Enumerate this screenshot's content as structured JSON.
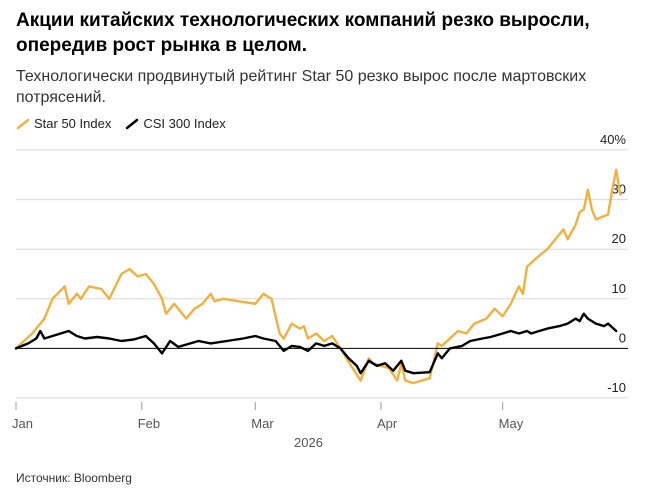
{
  "title": "Акции китайских технологических компаний резко выросли, опередив рост рынка в целом.",
  "subtitle": "Технологически продвинутый рейтинг Star 50 резко вырос после мартовских потрясений.",
  "source": "Источник: Bloomberg",
  "colors": {
    "star50": "#F0B13F",
    "csi300": "#000000",
    "grid": "#d9d9d9",
    "zero": "#000000",
    "axis_text": "#555555"
  },
  "chart_data": {
    "type": "line",
    "xlabel": "2026",
    "x_ticks": [
      "Jan",
      "Feb",
      "Mar",
      "Apr",
      "May"
    ],
    "y_ticks": [
      "40%",
      "30",
      "20",
      "10",
      "0",
      "-10"
    ],
    "y_tick_values": [
      40,
      30,
      20,
      10,
      0,
      -10
    ],
    "ylim": [
      -10,
      40
    ],
    "xlim": [
      "2026-01-01",
      "2026-05-25"
    ],
    "grid": true,
    "legend_position": "top-left",
    "series": [
      {
        "name": "Star 50 Index",
        "color": "#F0B13F",
        "points": [
          [
            "2026-01-01",
            0
          ],
          [
            "2026-01-05",
            3
          ],
          [
            "2026-01-08",
            6
          ],
          [
            "2026-01-10",
            10
          ],
          [
            "2026-01-13",
            12.5
          ],
          [
            "2026-01-14",
            9
          ],
          [
            "2026-01-16",
            11
          ],
          [
            "2026-01-17",
            10
          ],
          [
            "2026-01-19",
            12.5
          ],
          [
            "2026-01-22",
            12
          ],
          [
            "2026-01-24",
            10
          ],
          [
            "2026-01-27",
            15
          ],
          [
            "2026-01-29",
            16
          ],
          [
            "2026-01-31",
            14.5
          ],
          [
            "2026-02-02",
            15
          ],
          [
            "2026-02-04",
            13
          ],
          [
            "2026-02-06",
            10
          ],
          [
            "2026-02-07",
            7
          ],
          [
            "2026-02-09",
            9
          ],
          [
            "2026-02-12",
            6
          ],
          [
            "2026-02-14",
            8
          ],
          [
            "2026-02-16",
            9
          ],
          [
            "2026-02-18",
            11
          ],
          [
            "2026-02-19",
            9.5
          ],
          [
            "2026-02-21",
            10
          ],
          [
            "2026-03-01",
            9
          ],
          [
            "2026-03-03",
            11
          ],
          [
            "2026-03-05",
            10
          ],
          [
            "2026-03-07",
            3
          ],
          [
            "2026-03-08",
            2
          ],
          [
            "2026-03-10",
            5
          ],
          [
            "2026-03-12",
            4
          ],
          [
            "2026-03-13",
            4.5
          ],
          [
            "2026-03-14",
            2
          ],
          [
            "2026-03-16",
            3
          ],
          [
            "2026-03-18",
            1.5
          ],
          [
            "2026-03-20",
            2.5
          ],
          [
            "2026-03-22",
            0
          ],
          [
            "2026-03-25",
            -4
          ],
          [
            "2026-03-27",
            -6.5
          ],
          [
            "2026-03-29",
            -2
          ],
          [
            "2026-03-30",
            -3
          ],
          [
            "2026-04-01",
            -3.5
          ],
          [
            "2026-04-03",
            -4
          ],
          [
            "2026-04-05",
            -6.5
          ],
          [
            "2026-04-06",
            -3
          ],
          [
            "2026-04-07",
            -6.5
          ],
          [
            "2026-04-09",
            -7
          ],
          [
            "2026-04-13",
            -6
          ],
          [
            "2026-04-15",
            1
          ],
          [
            "2026-04-16",
            0.5
          ],
          [
            "2026-04-18",
            2
          ],
          [
            "2026-04-20",
            3.5
          ],
          [
            "2026-04-22",
            3
          ],
          [
            "2026-04-24",
            5
          ],
          [
            "2026-04-27",
            6
          ],
          [
            "2026-04-29",
            8
          ],
          [
            "2026-05-01",
            6.5
          ],
          [
            "2026-05-03",
            9
          ],
          [
            "2026-05-05",
            12.5
          ],
          [
            "2026-05-06",
            11
          ],
          [
            "2026-05-07",
            16.5
          ],
          [
            "2026-05-09",
            18
          ],
          [
            "2026-05-12",
            20
          ],
          [
            "2026-05-14",
            22
          ],
          [
            "2026-05-16",
            24
          ],
          [
            "2026-05-17",
            22
          ],
          [
            "2026-05-19",
            25
          ],
          [
            "2026-05-20",
            27.5
          ],
          [
            "2026-05-21",
            28
          ],
          [
            "2026-05-22",
            32
          ],
          [
            "2026-05-23",
            28
          ],
          [
            "2026-05-24",
            26
          ],
          [
            "2026-05-27",
            27
          ],
          [
            "2026-05-28",
            32
          ],
          [
            "2026-05-29",
            36
          ],
          [
            "2026-05-30",
            31
          ]
        ]
      },
      {
        "name": "CSI 300 Index",
        "color": "#000000",
        "points": [
          [
            "2026-01-01",
            0
          ],
          [
            "2026-01-04",
            1
          ],
          [
            "2026-01-06",
            2
          ],
          [
            "2026-01-07",
            3.5
          ],
          [
            "2026-01-08",
            2
          ],
          [
            "2026-01-10",
            2.5
          ],
          [
            "2026-01-12",
            3
          ],
          [
            "2026-01-14",
            3.5
          ],
          [
            "2026-01-16",
            2.5
          ],
          [
            "2026-01-18",
            2
          ],
          [
            "2026-01-21",
            2.3
          ],
          [
            "2026-01-24",
            2
          ],
          [
            "2026-01-27",
            1.5
          ],
          [
            "2026-01-30",
            1.8
          ],
          [
            "2026-02-02",
            2.5
          ],
          [
            "2026-02-04",
            1
          ],
          [
            "2026-02-06",
            -1
          ],
          [
            "2026-02-08",
            1.5
          ],
          [
            "2026-02-10",
            0.3
          ],
          [
            "2026-02-13",
            1
          ],
          [
            "2026-02-15",
            1.5
          ],
          [
            "2026-02-18",
            1
          ],
          [
            "2026-02-22",
            1.5
          ],
          [
            "2026-02-26",
            2
          ],
          [
            "2026-03-01",
            2.5
          ],
          [
            "2026-03-03",
            2
          ],
          [
            "2026-03-06",
            1.5
          ],
          [
            "2026-03-08",
            -0.5
          ],
          [
            "2026-03-10",
            0.5
          ],
          [
            "2026-03-12",
            0.3
          ],
          [
            "2026-03-14",
            -0.5
          ],
          [
            "2026-03-16",
            1
          ],
          [
            "2026-03-18",
            0.5
          ],
          [
            "2026-03-20",
            1
          ],
          [
            "2026-03-22",
            0
          ],
          [
            "2026-03-24",
            -2
          ],
          [
            "2026-03-26",
            -3.5
          ],
          [
            "2026-03-27",
            -5
          ],
          [
            "2026-03-29",
            -2.5
          ],
          [
            "2026-03-31",
            -3.5
          ],
          [
            "2026-04-02",
            -3
          ],
          [
            "2026-04-04",
            -4.5
          ],
          [
            "2026-04-06",
            -2.5
          ],
          [
            "2026-04-07",
            -4.5
          ],
          [
            "2026-04-09",
            -5
          ],
          [
            "2026-04-13",
            -4.8
          ],
          [
            "2026-04-15",
            -1
          ],
          [
            "2026-04-16",
            -2
          ],
          [
            "2026-04-18",
            0
          ],
          [
            "2026-04-21",
            0.5
          ],
          [
            "2026-04-23",
            1.5
          ],
          [
            "2026-04-26",
            2
          ],
          [
            "2026-04-28",
            2.3
          ],
          [
            "2026-05-01",
            3
          ],
          [
            "2026-05-03",
            3.5
          ],
          [
            "2026-05-05",
            3
          ],
          [
            "2026-05-07",
            3.5
          ],
          [
            "2026-05-08",
            3
          ],
          [
            "2026-05-10",
            3.5
          ],
          [
            "2026-05-12",
            4
          ],
          [
            "2026-05-15",
            4.5
          ],
          [
            "2026-05-17",
            5
          ],
          [
            "2026-05-19",
            6
          ],
          [
            "2026-05-20",
            5.5
          ],
          [
            "2026-05-21",
            7
          ],
          [
            "2026-05-22",
            6
          ],
          [
            "2026-05-24",
            5
          ],
          [
            "2026-05-26",
            4.5
          ],
          [
            "2026-05-27",
            5
          ],
          [
            "2026-05-29",
            3.5
          ]
        ]
      }
    ]
  }
}
